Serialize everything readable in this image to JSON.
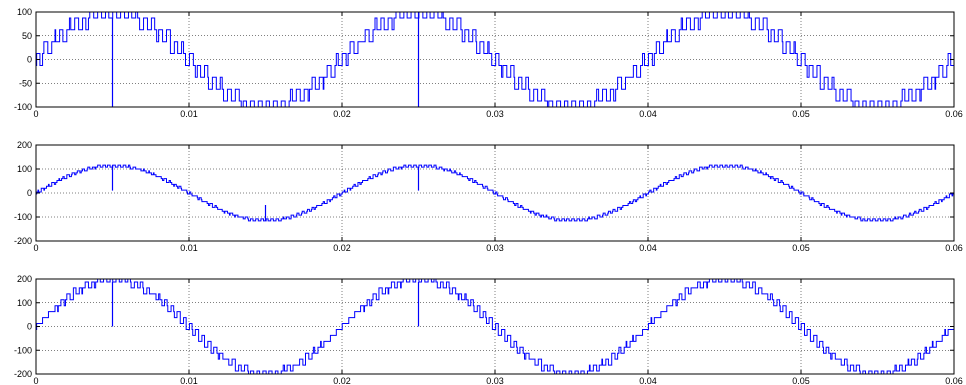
{
  "chart_data": [
    {
      "type": "line",
      "title": "",
      "xlabel": "",
      "ylabel": "",
      "xlim": [
        0,
        0.06
      ],
      "ylim": [
        -100,
        100
      ],
      "xticks": [
        0,
        0.01,
        0.02,
        0.03,
        0.04,
        0.05,
        0.06
      ],
      "xtick_labels": [
        "0",
        "0.01",
        "0.02",
        "0.03",
        "0.04",
        "0.05",
        "0.06"
      ],
      "yticks": [
        -100,
        -50,
        0,
        50,
        100
      ],
      "ytick_labels": [
        "-100",
        "-50",
        "0",
        "50",
        "100"
      ],
      "grid": true,
      "color": "#0000ff",
      "series": [
        {
          "frequency_hz": 50,
          "amplitude": 100,
          "waveform": "multilevel staircase, clipped at ±100",
          "level_step": 25,
          "switching_ripple_hz": 2000,
          "notches": [
            {
              "x": 0.005,
              "to": -100
            },
            {
              "x": 0.025,
              "to": -100
            }
          ]
        }
      ]
    },
    {
      "type": "line",
      "title": "",
      "xlabel": "",
      "ylabel": "",
      "xlim": [
        0,
        0.06
      ],
      "ylim": [
        -200,
        200
      ],
      "xticks": [
        0,
        0.01,
        0.02,
        0.03,
        0.04,
        0.05,
        0.06
      ],
      "xtick_labels": [
        "0",
        "0.01",
        "0.02",
        "0.03",
        "0.04",
        "0.05",
        "0.06"
      ],
      "yticks": [
        -200,
        -100,
        0,
        100,
        200
      ],
      "ytick_labels": [
        "-200",
        "-100",
        "0",
        "100",
        "200"
      ],
      "grid": true,
      "color": "#0000ff",
      "series": [
        {
          "frequency_hz": 50,
          "amplitude": 115,
          "waveform": "sinusoid with small high-frequency ripple",
          "level_step": 8,
          "switching_ripple_hz": 3000,
          "notches": [
            {
              "x": 0.005,
              "to": 10
            },
            {
              "x": 0.025,
              "to": 10
            },
            {
              "x": 0.015,
              "to": -50
            }
          ]
        }
      ]
    },
    {
      "type": "line",
      "title": "",
      "xlabel": "",
      "ylabel": "",
      "xlim": [
        0,
        0.06
      ],
      "ylim": [
        -200,
        200
      ],
      "xticks": [
        0,
        0.01,
        0.02,
        0.03,
        0.04,
        0.05,
        0.06
      ],
      "xtick_labels": [
        "0",
        "0.01",
        "0.02",
        "0.03",
        "0.04",
        "0.05",
        "0.06"
      ],
      "yticks": [
        -200,
        -100,
        0,
        100,
        200
      ],
      "ytick_labels": [
        "-200",
        "-100",
        "0",
        "100",
        "200"
      ],
      "grid": true,
      "color": "#0000ff",
      "series": [
        {
          "frequency_hz": 50,
          "amplitude": 200,
          "waveform": "multilevel staircase, clipped at ±190",
          "level_step": 25,
          "switching_ripple_hz": 2500,
          "notches": [
            {
              "x": 0.005,
              "to": 0
            },
            {
              "x": 0.025,
              "to": 0
            }
          ]
        }
      ]
    }
  ]
}
